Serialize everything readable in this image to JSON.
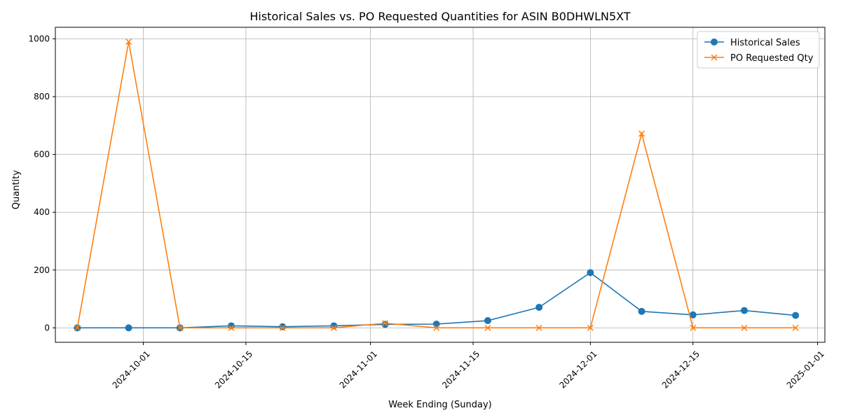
{
  "chart_data": {
    "type": "line",
    "title": "Historical Sales vs. PO Requested Quantities for ASIN B0DHWLN5XT",
    "xlabel": "Week Ending (Sunday)",
    "ylabel": "Quantity",
    "x": [
      "2024-09-22",
      "2024-09-29",
      "2024-10-06",
      "2024-10-13",
      "2024-10-20",
      "2024-10-27",
      "2024-11-03",
      "2024-11-10",
      "2024-11-17",
      "2024-11-24",
      "2024-12-01",
      "2024-12-08",
      "2024-12-15",
      "2024-12-22",
      "2024-12-29"
    ],
    "xlim": [
      "2024-09-19",
      "2025-01-02"
    ],
    "ylim": [
      -50,
      1040
    ],
    "xticks": [
      "2024-10-01",
      "2024-10-15",
      "2024-11-01",
      "2024-11-15",
      "2024-12-01",
      "2024-12-15",
      "2025-01-01"
    ],
    "yticks": [
      0,
      200,
      400,
      600,
      800,
      1000
    ],
    "grid": true,
    "legend_position": "top-right",
    "series": [
      {
        "name": "Historical Sales",
        "marker": "circle",
        "color": "#1f77b4",
        "values": [
          0,
          0,
          0,
          7,
          4,
          7,
          12,
          13,
          25,
          71,
          191,
          57,
          45,
          60,
          43
        ]
      },
      {
        "name": "PO Requested Qty",
        "marker": "x",
        "color": "#ff7f0e",
        "values": [
          0,
          990,
          0,
          0,
          0,
          0,
          16,
          0,
          0,
          0,
          0,
          672,
          0,
          0,
          0
        ]
      }
    ]
  }
}
